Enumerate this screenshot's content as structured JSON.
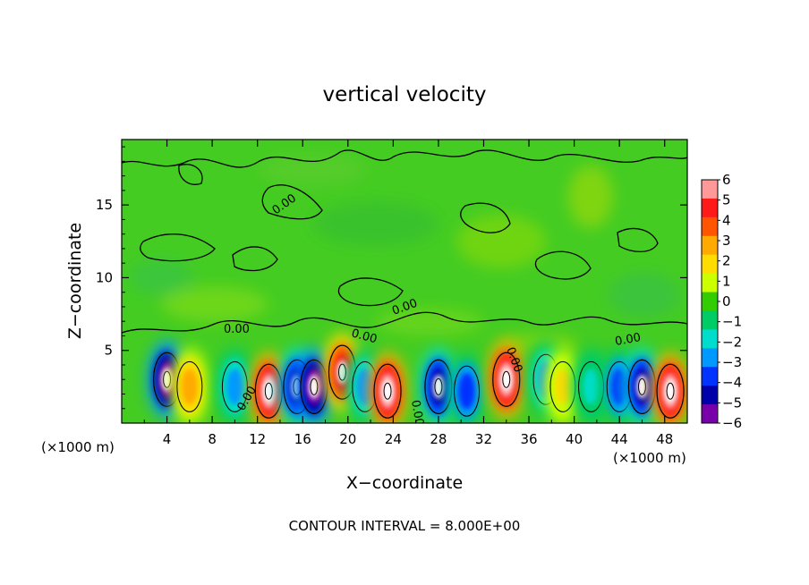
{
  "chart_data": {
    "type": "heatmap",
    "title": "vertical velocity",
    "xlabel": "X−coordinate",
    "ylabel": "Z−coordinate",
    "x_unit_left": "(×1000 m)",
    "x_unit_right": "(×1000 m)",
    "xlim": [
      0,
      50
    ],
    "ylim": [
      0,
      19.5
    ],
    "x_ticks": [
      4,
      8,
      12,
      16,
      20,
      24,
      28,
      32,
      36,
      40,
      44,
      48
    ],
    "y_ticks": [
      5,
      10,
      15
    ],
    "x_tick_labels": [
      "4",
      "8",
      "12",
      "16",
      "20",
      "24",
      "28",
      "32",
      "36",
      "40",
      "44",
      "48"
    ],
    "y_tick_labels": [
      "5",
      "10",
      "15"
    ],
    "contour_labels": [
      "0.00",
      "0.00",
      "0.00",
      "0.00",
      "0.00",
      "0.00",
      "0.00",
      "0.00"
    ],
    "contour_interval_text": "CONTOUR INTERVAL =  8.000E+00",
    "colorbar": {
      "labels": [
        "6",
        "5",
        "4",
        "3",
        "2",
        "1",
        "0",
        "−1",
        "−2",
        "−3",
        "−4",
        "−5",
        "−6"
      ],
      "colors": [
        "#ff9999",
        "#ff1a1a",
        "#ff5500",
        "#ffaa00",
        "#ffdd00",
        "#ccff00",
        "#33cc00",
        "#00cc66",
        "#00ddcc",
        "#0099ff",
        "#0033ff",
        "#0000aa",
        "#7700aa"
      ]
    },
    "background_color": "#44cc22",
    "cells": [
      {
        "x": 4,
        "z": 3.0,
        "value": -6
      },
      {
        "x": 6,
        "z": 2.5,
        "value": 3
      },
      {
        "x": 10,
        "z": 2.5,
        "value": -3
      },
      {
        "x": 13,
        "z": 2.2,
        "value": 6
      },
      {
        "x": 15.5,
        "z": 2.5,
        "value": -5
      },
      {
        "x": 17,
        "z": 2.5,
        "value": -6
      },
      {
        "x": 19.5,
        "z": 3.5,
        "value": 5
      },
      {
        "x": 21.5,
        "z": 2.5,
        "value": -3
      },
      {
        "x": 23.5,
        "z": 2.2,
        "value": 6
      },
      {
        "x": 28,
        "z": 2.5,
        "value": -5
      },
      {
        "x": 30.5,
        "z": 2.2,
        "value": -4
      },
      {
        "x": 34,
        "z": 3.0,
        "value": 6
      },
      {
        "x": 37.5,
        "z": 3.0,
        "value": -3
      },
      {
        "x": 39,
        "z": 2.5,
        "value": 2
      },
      {
        "x": 41.5,
        "z": 2.5,
        "value": -2
      },
      {
        "x": 44,
        "z": 2.5,
        "value": -4
      },
      {
        "x": 46,
        "z": 2.5,
        "value": -5
      },
      {
        "x": 48.5,
        "z": 2.2,
        "value": 6
      }
    ]
  }
}
